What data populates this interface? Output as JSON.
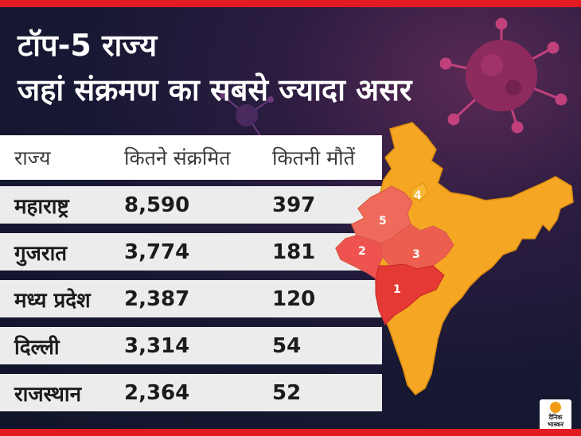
{
  "title": {
    "line1": "टॉप-5 राज्य",
    "line2": "जहां संक्रमण का सबसे ज्यादा असर"
  },
  "table": {
    "headers": [
      "राज्य",
      "कितने संक्रमित",
      "कितनी मौतें"
    ],
    "rows": [
      [
        "महाराष्ट्र",
        "8,590",
        "397"
      ],
      [
        "गुजरात",
        "3,774",
        "181"
      ],
      [
        "मध्य प्रदेश",
        "2,387",
        "120"
      ],
      [
        "दिल्ली",
        "3,314",
        "54"
      ],
      [
        "राजस्थान",
        "2,364",
        "52"
      ]
    ]
  },
  "map": {
    "labels": [
      "1",
      "2",
      "3",
      "4",
      "5"
    ],
    "colors": {
      "base": "#f5a623",
      "rank1": "#e53935",
      "rank2": "#ef5350",
      "rank3": "#ec5f4f",
      "rank4": "#f7b733",
      "rank5": "#ee6a5a"
    }
  },
  "logo": {
    "line1": "दैनिक",
    "line2": "भास्कर"
  },
  "decor": {
    "icons": [
      "virus-icon"
    ],
    "accent": "#e21b23"
  }
}
